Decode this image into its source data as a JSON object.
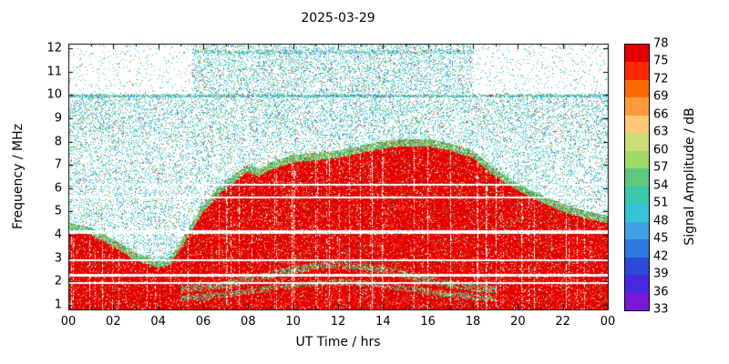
{
  "chart_data": {
    "type": "heatmap",
    "title": "2025-03-29",
    "xlabel": "UT Time / hrs",
    "ylabel": "Frequency / MHz",
    "x_range_hours": [
      0,
      24
    ],
    "y_range_mhz": [
      0.8,
      12.2
    ],
    "seed": 7,
    "envelope_hours": [
      0,
      1,
      2,
      3,
      4,
      4.5,
      5,
      6,
      7,
      8,
      8.5,
      9,
      10,
      11,
      12,
      13,
      14,
      15,
      16,
      16.5,
      17,
      18,
      19,
      20,
      21,
      22,
      23,
      24
    ],
    "envelope_mhz": [
      4.2,
      4.0,
      3.5,
      2.9,
      2.6,
      2.7,
      3.4,
      5.0,
      6.0,
      6.7,
      6.5,
      6.8,
      7.1,
      7.2,
      7.3,
      7.5,
      7.7,
      7.8,
      7.8,
      7.7,
      7.6,
      7.3,
      6.5,
      5.9,
      5.4,
      5.0,
      4.7,
      4.5
    ],
    "gap_rows_mhz": [
      {
        "f": 6.15,
        "w": 0.1
      },
      {
        "f": 5.62,
        "w": 0.08
      },
      {
        "f": 4.12,
        "w": 0.14
      },
      {
        "f": 2.92,
        "w": 0.09
      },
      {
        "f": 2.26,
        "w": 0.09
      },
      {
        "f": 1.93,
        "w": 0.07
      }
    ],
    "dense_rows": [
      {
        "f": 9.95,
        "w": 0.07,
        "t0": 0,
        "t1": 24,
        "p": 0.75
      },
      {
        "f": 11.85,
        "w": 0.08,
        "t0": 5.5,
        "t1": 18,
        "p": 0.55
      }
    ],
    "arcs": [
      {
        "base": 1.55,
        "amp": 1.15,
        "sigma": 4.5,
        "t_center": 12.0,
        "w": 0.16,
        "p": 0.45,
        "t0": 5,
        "t1": 19
      },
      {
        "base": 1.15,
        "amp": 0.8,
        "sigma": 5.0,
        "t_center": 12.0,
        "w": 0.13,
        "p": 0.4,
        "t0": 5,
        "t1": 19
      }
    ],
    "noise": {
      "mid": 0.22,
      "band8to10": 0.26,
      "top_active": 0.26,
      "top_quiet": 0.05,
      "active_t0": 5.5,
      "active_t1": 18
    },
    "speckle_colors": {
      "red": "#e60000",
      "red2": "#ff2800",
      "darkred": "#b40000",
      "orange": "#ff6e14",
      "green": "#50c864",
      "teal": "#2dc3a5",
      "cyan": "#37c8d7",
      "lblue": "#46a5e6",
      "blue": "#2d5adc",
      "yellowgreen": "#bedc78",
      "white": "#ffffff"
    },
    "colorbar_label": "Signal Amplitude / dB"
  },
  "x_axis": {
    "label": "UT Time / hrs",
    "tick_labels": [
      "00",
      "02",
      "04",
      "06",
      "08",
      "10",
      "12",
      "14",
      "16",
      "18",
      "20",
      "22",
      "00"
    ]
  },
  "y_axis": {
    "label": "Frequency / MHz",
    "tick_labels": [
      "1",
      "2",
      "3",
      "4",
      "5",
      "6",
      "7",
      "8",
      "9",
      "10",
      "11",
      "12"
    ]
  },
  "colorbar": {
    "label": "Signal Amplitude / dB",
    "tick_labels": [
      "78",
      "75",
      "72",
      "69",
      "66",
      "63",
      "60",
      "57",
      "54",
      "51",
      "48",
      "45",
      "42",
      "39",
      "36",
      "33"
    ],
    "segment_colors_top_to_bottom": [
      "#e30000",
      "#ff2800",
      "#ff6a00",
      "#ff9a3c",
      "#ffc878",
      "#cdda7a",
      "#9fd968",
      "#5ec87e",
      "#3cc8a8",
      "#35c3d5",
      "#41a0e6",
      "#2f78e0",
      "#2a4ad8",
      "#4628e0",
      "#7a18d8"
    ]
  }
}
